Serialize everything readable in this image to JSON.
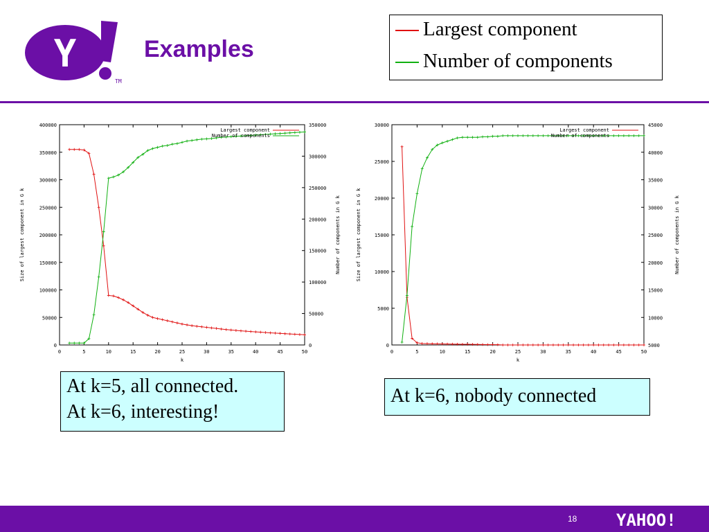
{
  "slide": {
    "title": "Examples",
    "page_number": "18",
    "logo_text": "Y!",
    "footer_logo_text": "YAHOO!"
  },
  "legend": {
    "items": [
      {
        "label": "Largest component",
        "color": "#e01010"
      },
      {
        "label": "Number of components",
        "color": "#10b010"
      }
    ]
  },
  "notes": {
    "left_line1": "At k=5, all connected.",
    "left_line2": "At k=6, interesting!",
    "right": "At k=6, nobody connected"
  },
  "colors": {
    "brand": "#6b0fa6",
    "note_bg": "#ccffff",
    "red": "#e01010",
    "green": "#10b010"
  },
  "chart_data": [
    {
      "type": "line",
      "xlabel": "k",
      "ylabel": "Size of largest component in G k",
      "y2label": "Number of components in G k",
      "xlim": [
        0,
        50
      ],
      "ylim": [
        0,
        400000
      ],
      "y2lim": [
        0,
        350000
      ],
      "xticks": [
        0,
        5,
        10,
        15,
        20,
        25,
        30,
        35,
        40,
        45,
        50
      ],
      "yticks": [
        0,
        50000,
        100000,
        150000,
        200000,
        250000,
        300000,
        350000,
        400000
      ],
      "y2ticks": [
        0,
        50000,
        100000,
        150000,
        200000,
        250000,
        300000,
        350000
      ],
      "legend_position": "top-right",
      "series": [
        {
          "name": "Largest component",
          "axis": "y",
          "color": "#e01010",
          "x": [
            2,
            3,
            4,
            5,
            6,
            7,
            8,
            9,
            10,
            11,
            12,
            13,
            14,
            15,
            16,
            17,
            18,
            19,
            20,
            21,
            22,
            23,
            24,
            25,
            26,
            27,
            28,
            29,
            30,
            31,
            32,
            33,
            34,
            35,
            36,
            37,
            38,
            39,
            40,
            41,
            42,
            43,
            44,
            45,
            46,
            47,
            48,
            49,
            50
          ],
          "y": [
            355000,
            355000,
            355000,
            354000,
            348000,
            310000,
            250000,
            180000,
            90000,
            89000,
            86000,
            82000,
            77000,
            71000,
            65000,
            59000,
            54000,
            50000,
            48000,
            46000,
            44000,
            42000,
            40000,
            38000,
            36500,
            35000,
            34000,
            33000,
            32000,
            31000,
            30000,
            29000,
            28000,
            27200,
            26400,
            25600,
            25000,
            24400,
            23800,
            23200,
            22600,
            22000,
            21500,
            21000,
            20500,
            20000,
            19500,
            19000,
            18500
          ]
        },
        {
          "name": "Number of components",
          "axis": "y2",
          "color": "#10b010",
          "x": [
            2,
            3,
            4,
            5,
            6,
            7,
            8,
            9,
            10,
            11,
            12,
            13,
            14,
            15,
            16,
            17,
            18,
            19,
            20,
            21,
            22,
            23,
            24,
            25,
            26,
            27,
            28,
            29,
            30,
            31,
            32,
            33,
            34,
            35,
            36,
            37,
            38,
            39,
            40,
            41,
            42,
            43,
            44,
            45,
            46,
            47,
            48,
            49,
            50
          ],
          "y": [
            3000,
            3000,
            3000,
            3000,
            10000,
            48000,
            108000,
            180000,
            265000,
            267000,
            270000,
            275000,
            282000,
            290000,
            298000,
            303000,
            309000,
            312000,
            314000,
            316000,
            317000,
            319000,
            320000,
            322000,
            324000,
            325000,
            326000,
            327000,
            327500,
            328000,
            329000,
            330000,
            330500,
            331000,
            331500,
            332000,
            332500,
            333000,
            333500,
            334000,
            334500,
            335000,
            335500,
            336000,
            336500,
            337000,
            337500,
            338000,
            338500
          ]
        }
      ]
    },
    {
      "type": "line",
      "xlabel": "k",
      "ylabel": "Size of largest component in G k",
      "y2label": "Number of components in G k",
      "xlim": [
        0,
        50
      ],
      "ylim": [
        0,
        30000
      ],
      "y2lim": [
        5000,
        45000
      ],
      "xticks": [
        0,
        5,
        10,
        15,
        20,
        25,
        30,
        35,
        40,
        45,
        50
      ],
      "yticks": [
        0,
        5000,
        10000,
        15000,
        20000,
        25000,
        30000
      ],
      "y2ticks": [
        5000,
        10000,
        15000,
        20000,
        25000,
        30000,
        35000,
        40000,
        45000
      ],
      "legend_position": "top-right",
      "series": [
        {
          "name": "Largest component",
          "axis": "y",
          "color": "#e01010",
          "x": [
            2,
            3,
            4,
            5,
            6,
            7,
            8,
            9,
            10,
            11,
            12,
            13,
            14,
            15,
            16,
            17,
            18,
            19,
            20,
            21,
            22,
            23,
            24,
            25,
            26,
            27,
            28,
            29,
            30,
            31,
            32,
            33,
            34,
            35,
            36,
            37,
            38,
            39,
            40,
            41,
            42,
            43,
            44,
            45,
            46,
            47,
            48,
            49,
            50
          ],
          "y": [
            27000,
            6500,
            900,
            300,
            200,
            180,
            160,
            150,
            140,
            130,
            120,
            110,
            100,
            90,
            80,
            70,
            60,
            50,
            45,
            40,
            0,
            0,
            0,
            0,
            0,
            0,
            0,
            0,
            0,
            0,
            0,
            0,
            0,
            0,
            0,
            0,
            0,
            0,
            0,
            0,
            0,
            0,
            0,
            0,
            0,
            0,
            0,
            0,
            0
          ]
        },
        {
          "name": "Number of components",
          "axis": "y2",
          "color": "#10b010",
          "x": [
            2,
            3,
            4,
            5,
            6,
            7,
            8,
            9,
            10,
            11,
            12,
            13,
            14,
            15,
            16,
            17,
            18,
            19,
            20,
            21,
            22,
            23,
            24,
            25,
            26,
            27,
            28,
            29,
            30,
            31,
            32,
            33,
            34,
            35,
            36,
            37,
            38,
            39,
            40,
            41,
            42,
            43,
            44,
            45,
            46,
            47,
            48,
            49,
            50
          ],
          "y": [
            5500,
            14000,
            26500,
            32500,
            37000,
            39000,
            40500,
            41300,
            41700,
            42000,
            42300,
            42600,
            42700,
            42700,
            42700,
            42700,
            42800,
            42800,
            42900,
            42900,
            43000,
            43000,
            43000,
            43000,
            43000,
            43000,
            43000,
            43000,
            43000,
            43000,
            43000,
            43000,
            43000,
            43000,
            43000,
            43000,
            43000,
            43000,
            43000,
            43000,
            43000,
            43000,
            43000,
            43000,
            43000,
            43000,
            43000,
            43000,
            43000
          ]
        }
      ]
    }
  ]
}
